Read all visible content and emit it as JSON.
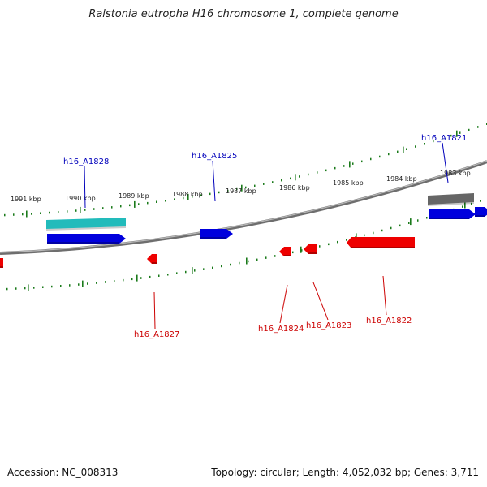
{
  "title": "Ralstonia eutropha H16 chromosome 1, complete genome",
  "footer": {
    "accession": "Accession: NC_008313",
    "summary": "Topology: circular; Length: 4,052,032 bp; Genes: 3,711"
  },
  "colors": {
    "backbone": "#8a8a8a",
    "tick": "#1a7a1a",
    "forward_gene": "#0000dd",
    "reverse_gene": "#ee0000",
    "cyan_feature": "#22bbbb",
    "gray_feature": "#666666",
    "forward_label": "#0000bb",
    "reverse_label": "#cc0000"
  },
  "kbp_ticks": [
    {
      "kbp": 1991,
      "label": "1991 kbp"
    },
    {
      "kbp": 1990,
      "label": "1990 kbp"
    },
    {
      "kbp": 1989,
      "label": "1989 kbp"
    },
    {
      "kbp": 1988,
      "label": "1988 kbp"
    },
    {
      "kbp": 1987,
      "label": "1987 kbp"
    },
    {
      "kbp": 1986,
      "label": "1986 kbp"
    },
    {
      "kbp": 1985,
      "label": "1985 kbp"
    },
    {
      "kbp": 1984,
      "label": "1984 kbp"
    },
    {
      "kbp": 1983,
      "label": "1983 kbp"
    }
  ],
  "forward_labels": [
    {
      "name": "h16_A1828"
    },
    {
      "name": "h16_A1825"
    },
    {
      "name": "h16_A1821"
    }
  ],
  "reverse_labels": [
    {
      "name": "h16_A1827"
    },
    {
      "name": "h16_A1824"
    },
    {
      "name": "h16_A1823"
    },
    {
      "name": "h16_A1822"
    }
  ]
}
